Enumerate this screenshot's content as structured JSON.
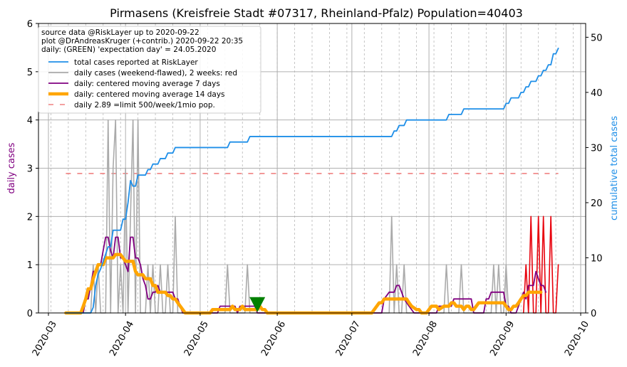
{
  "chart_data": {
    "type": "line",
    "title": "Pirmasens (Kreisfreie Stadt #07317, Rheinland-Pfalz) Population=40403",
    "ylabel_left": "daily cases",
    "ylabel_right": "cumulative total cases",
    "ylim_left": [
      0,
      6
    ],
    "ylim_right": [
      0,
      52.5
    ],
    "yticks_left": [
      "0",
      "1",
      "2",
      "3",
      "4",
      "5",
      "6"
    ],
    "yticks_right": [
      "0",
      "10",
      "20",
      "30",
      "40",
      "50"
    ],
    "xlim": [
      "2020-02-26",
      "2020-10-03"
    ],
    "xticks": [
      "2020-03",
      "2020-04",
      "2020-05",
      "2020-06",
      "2020-07",
      "2020-08",
      "2020-09",
      "2020-10"
    ],
    "grid": true,
    "legend_position": "top-left",
    "legend_header": [
      "source data @RiskLayer up to 2020-09-22",
      "plot @DrAndreasKruger (+contrib.) 2020-09-22 20:35",
      "daily: (GREEN) 'expectation day' = 24.05.2020"
    ],
    "legend_entries": [
      {
        "label": "total cases reported at RiskLayer",
        "color": "#1f8fe8"
      },
      {
        "label": "daily cases (weekend-flawed), 2 weeks: red",
        "color": "#aaaaaa"
      },
      {
        "label": "daily: centered moving average 7 days",
        "color": "#800080"
      },
      {
        "label": "daily: centered moving average 14 days",
        "color": "#ffa500"
      },
      {
        "label": "daily 2.89 =limit 500/week/1mio pop.",
        "color": "#f08080"
      }
    ],
    "limit_line": {
      "value": 2.89,
      "start": "2020-03-08",
      "end": "2020-09-22"
    },
    "expectation_day": "2020-05-24",
    "series_total": [
      [
        "2020-03-08",
        0
      ],
      [
        "2020-03-18",
        0
      ],
      [
        "2020-03-19",
        1
      ],
      [
        "2020-03-20",
        5
      ],
      [
        "2020-03-21",
        7
      ],
      [
        "2020-03-22",
        8
      ],
      [
        "2020-03-25",
        12
      ],
      [
        "2020-03-26",
        12
      ],
      [
        "2020-03-27",
        15
      ],
      [
        "2020-03-30",
        15
      ],
      [
        "2020-03-31",
        17
      ],
      [
        "2020-04-01",
        17
      ],
      [
        "2020-04-02",
        20
      ],
      [
        "2020-04-03",
        24
      ],
      [
        "2020-04-04",
        23
      ],
      [
        "2020-04-05",
        23
      ],
      [
        "2020-04-06",
        25
      ],
      [
        "2020-04-09",
        25
      ],
      [
        "2020-04-10",
        26
      ],
      [
        "2020-04-11",
        26
      ],
      [
        "2020-04-12",
        27
      ],
      [
        "2020-04-14",
        27
      ],
      [
        "2020-04-15",
        28
      ],
      [
        "2020-04-17",
        28
      ],
      [
        "2020-04-18",
        29
      ],
      [
        "2020-04-20",
        29
      ],
      [
        "2020-04-21",
        30
      ],
      [
        "2020-05-12",
        30
      ],
      [
        "2020-05-13",
        31
      ],
      [
        "2020-05-20",
        31
      ],
      [
        "2020-05-21",
        32
      ],
      [
        "2020-07-17",
        32
      ],
      [
        "2020-07-18",
        33
      ],
      [
        "2020-07-19",
        33
      ],
      [
        "2020-07-20",
        34
      ],
      [
        "2020-07-22",
        34
      ],
      [
        "2020-07-23",
        35
      ],
      [
        "2020-08-08",
        35
      ],
      [
        "2020-08-09",
        36
      ],
      [
        "2020-08-14",
        36
      ],
      [
        "2020-08-15",
        37
      ],
      [
        "2020-08-31",
        37
      ],
      [
        "2020-09-01",
        38
      ],
      [
        "2020-09-02",
        38
      ],
      [
        "2020-09-03",
        39
      ],
      [
        "2020-09-06",
        39
      ],
      [
        "2020-09-07",
        40
      ],
      [
        "2020-09-08",
        40
      ],
      [
        "2020-09-09",
        41
      ],
      [
        "2020-09-10",
        41
      ],
      [
        "2020-09-11",
        42
      ],
      [
        "2020-09-13",
        42
      ],
      [
        "2020-09-14",
        43
      ],
      [
        "2020-09-15",
        43
      ],
      [
        "2020-09-16",
        44
      ],
      [
        "2020-09-17",
        44
      ],
      [
        "2020-09-18",
        45
      ],
      [
        "2020-09-19",
        45
      ],
      [
        "2020-09-20",
        47
      ],
      [
        "2020-09-21",
        47
      ],
      [
        "2020-09-22",
        48
      ]
    ],
    "series_daily": [
      [
        "2020-03-08",
        0
      ],
      [
        "2020-03-18",
        0
      ],
      [
        "2020-03-19",
        1
      ],
      [
        "2020-03-20",
        0
      ],
      [
        "2020-03-21",
        1
      ],
      [
        "2020-03-22",
        0
      ],
      [
        "2020-03-24",
        0
      ],
      [
        "2020-03-25",
        4
      ],
      [
        "2020-03-26",
        0
      ],
      [
        "2020-03-27",
        3
      ],
      [
        "2020-03-28",
        4
      ],
      [
        "2020-03-29",
        0
      ],
      [
        "2020-03-30",
        1
      ],
      [
        "2020-03-31",
        0
      ],
      [
        "2020-04-01",
        3
      ],
      [
        "2020-04-02",
        0
      ],
      [
        "2020-04-03",
        2
      ],
      [
        "2020-04-04",
        4
      ],
      [
        "2020-04-05",
        0
      ],
      [
        "2020-04-06",
        4
      ],
      [
        "2020-04-07",
        0
      ],
      [
        "2020-04-08",
        0
      ],
      [
        "2020-04-09",
        0
      ],
      [
        "2020-04-10",
        1
      ],
      [
        "2020-04-11",
        0
      ],
      [
        "2020-04-12",
        1
      ],
      [
        "2020-04-13",
        0
      ],
      [
        "2020-04-14",
        0
      ],
      [
        "2020-04-15",
        1
      ],
      [
        "2020-04-16",
        0
      ],
      [
        "2020-04-17",
        0
      ],
      [
        "2020-04-18",
        1
      ],
      [
        "2020-04-19",
        0
      ],
      [
        "2020-04-20",
        0
      ],
      [
        "2020-04-21",
        2
      ],
      [
        "2020-04-22",
        0
      ],
      [
        "2020-05-11",
        0
      ],
      [
        "2020-05-12",
        1
      ],
      [
        "2020-05-13",
        0
      ],
      [
        "2020-05-19",
        0
      ],
      [
        "2020-05-20",
        1
      ],
      [
        "2020-05-21",
        0
      ],
      [
        "2020-07-16",
        0
      ],
      [
        "2020-07-17",
        2
      ],
      [
        "2020-07-18",
        0
      ],
      [
        "2020-07-19",
        1
      ],
      [
        "2020-07-20",
        0
      ],
      [
        "2020-07-21",
        0
      ],
      [
        "2020-07-22",
        1
      ],
      [
        "2020-07-23",
        0
      ],
      [
        "2020-08-07",
        0
      ],
      [
        "2020-08-08",
        1
      ],
      [
        "2020-08-09",
        0
      ],
      [
        "2020-08-13",
        0
      ],
      [
        "2020-08-14",
        1
      ],
      [
        "2020-08-15",
        0
      ],
      [
        "2020-08-26",
        0
      ],
      [
        "2020-08-27",
        1
      ],
      [
        "2020-08-28",
        0
      ],
      [
        "2020-08-29",
        1
      ],
      [
        "2020-08-30",
        0
      ],
      [
        "2020-08-31",
        0
      ],
      [
        "2020-09-01",
        1
      ],
      [
        "2020-09-02",
        0
      ],
      [
        "2020-09-04",
        0
      ]
    ],
    "series_daily_recent": [
      [
        "2020-09-08",
        0
      ],
      [
        "2020-09-09",
        1
      ],
      [
        "2020-09-10",
        0
      ],
      [
        "2020-09-11",
        2
      ],
      [
        "2020-09-12",
        0
      ],
      [
        "2020-09-13",
        0
      ],
      [
        "2020-09-14",
        2
      ],
      [
        "2020-09-15",
        0
      ],
      [
        "2020-09-16",
        2
      ],
      [
        "2020-09-17",
        0
      ],
      [
        "2020-09-18",
        0
      ],
      [
        "2020-09-19",
        2
      ],
      [
        "2020-09-20",
        0
      ],
      [
        "2020-09-21",
        0
      ],
      [
        "2020-09-22",
        1
      ]
    ],
    "series_ma7": [
      [
        "2020-03-08",
        0
      ],
      [
        "2020-03-15",
        0
      ],
      [
        "2020-03-16",
        0.29
      ],
      [
        "2020-03-17",
        0.29
      ],
      [
        "2020-03-18",
        0.57
      ],
      [
        "2020-03-19",
        0.86
      ],
      [
        "2020-03-20",
        0.86
      ],
      [
        "2020-03-21",
        1.0
      ],
      [
        "2020-03-22",
        1.0
      ],
      [
        "2020-03-23",
        1.29
      ],
      [
        "2020-03-24",
        1.57
      ],
      [
        "2020-03-25",
        1.57
      ],
      [
        "2020-03-26",
        1.29
      ],
      [
        "2020-03-27",
        1.14
      ],
      [
        "2020-03-28",
        1.57
      ],
      [
        "2020-03-29",
        1.57
      ],
      [
        "2020-03-30",
        1.14
      ],
      [
        "2020-03-31",
        1.14
      ],
      [
        "2020-04-01",
        1.0
      ],
      [
        "2020-04-02",
        0.86
      ],
      [
        "2020-04-03",
        1.57
      ],
      [
        "2020-04-04",
        1.57
      ],
      [
        "2020-04-05",
        1.14
      ],
      [
        "2020-04-06",
        1.14
      ],
      [
        "2020-04-07",
        1.0
      ],
      [
        "2020-04-08",
        0.71
      ],
      [
        "2020-04-09",
        0.57
      ],
      [
        "2020-04-10",
        0.29
      ],
      [
        "2020-04-11",
        0.29
      ],
      [
        "2020-04-12",
        0.43
      ],
      [
        "2020-04-13",
        0.43
      ],
      [
        "2020-04-14",
        0.57
      ],
      [
        "2020-04-15",
        0.43
      ],
      [
        "2020-04-16",
        0.43
      ],
      [
        "2020-04-17",
        0.43
      ],
      [
        "2020-04-18",
        0.43
      ],
      [
        "2020-04-19",
        0.43
      ],
      [
        "2020-04-20",
        0.43
      ],
      [
        "2020-04-21",
        0.29
      ],
      [
        "2020-04-22",
        0.29
      ],
      [
        "2020-04-23",
        0.14
      ],
      [
        "2020-04-24",
        0
      ],
      [
        "2020-05-08",
        0
      ],
      [
        "2020-05-09",
        0.14
      ],
      [
        "2020-05-15",
        0.14
      ],
      [
        "2020-05-16",
        0
      ],
      [
        "2020-05-17",
        0.14
      ],
      [
        "2020-05-23",
        0.14
      ],
      [
        "2020-05-24",
        0
      ],
      [
        "2020-07-13",
        0
      ],
      [
        "2020-07-14",
        0.29
      ],
      [
        "2020-07-16",
        0.43
      ],
      [
        "2020-07-18",
        0.43
      ],
      [
        "2020-07-19",
        0.57
      ],
      [
        "2020-07-20",
        0.57
      ],
      [
        "2020-07-21",
        0.43
      ],
      [
        "2020-07-22",
        0.29
      ],
      [
        "2020-07-24",
        0.14
      ],
      [
        "2020-07-26",
        0
      ],
      [
        "2020-08-04",
        0
      ],
      [
        "2020-08-05",
        0.14
      ],
      [
        "2020-08-10",
        0.14
      ],
      [
        "2020-08-11",
        0.29
      ],
      [
        "2020-08-18",
        0.29
      ],
      [
        "2020-08-19",
        0
      ],
      [
        "2020-08-23",
        0
      ],
      [
        "2020-08-24",
        0.29
      ],
      [
        "2020-08-25",
        0.29
      ],
      [
        "2020-08-26",
        0.43
      ],
      [
        "2020-08-31",
        0.43
      ],
      [
        "2020-09-01",
        0.14
      ],
      [
        "2020-09-02",
        0.14
      ],
      [
        "2020-09-03",
        0
      ],
      [
        "2020-09-05",
        0
      ],
      [
        "2020-09-06",
        0.14
      ],
      [
        "2020-09-07",
        0.29
      ],
      [
        "2020-09-08",
        0.43
      ],
      [
        "2020-09-09",
        0.29
      ],
      [
        "2020-09-10",
        0.57
      ],
      [
        "2020-09-11",
        0.57
      ],
      [
        "2020-09-12",
        0.57
      ],
      [
        "2020-09-13",
        0.86
      ],
      [
        "2020-09-14",
        0.71
      ],
      [
        "2020-09-15",
        0.57
      ],
      [
        "2020-09-16",
        0.57
      ],
      [
        "2020-09-17",
        0.43
      ]
    ],
    "series_ma14": [
      [
        "2020-03-08",
        0
      ],
      [
        "2020-03-14",
        0
      ],
      [
        "2020-03-15",
        0.14
      ],
      [
        "2020-03-16",
        0.29
      ],
      [
        "2020-03-17",
        0.5
      ],
      [
        "2020-03-18",
        0.5
      ],
      [
        "2020-03-19",
        0.71
      ],
      [
        "2020-03-20",
        0.86
      ],
      [
        "2020-03-21",
        1.0
      ],
      [
        "2020-03-22",
        1.0
      ],
      [
        "2020-03-23",
        1.0
      ],
      [
        "2020-03-24",
        1.14
      ],
      [
        "2020-03-25",
        1.14
      ],
      [
        "2020-03-26",
        1.14
      ],
      [
        "2020-03-27",
        1.14
      ],
      [
        "2020-03-28",
        1.21
      ],
      [
        "2020-03-29",
        1.21
      ],
      [
        "2020-03-30",
        1.21
      ],
      [
        "2020-03-31",
        1.14
      ],
      [
        "2020-04-01",
        1.07
      ],
      [
        "2020-04-02",
        1.07
      ],
      [
        "2020-04-03",
        1.07
      ],
      [
        "2020-04-04",
        1.07
      ],
      [
        "2020-04-05",
        0.86
      ],
      [
        "2020-04-06",
        0.79
      ],
      [
        "2020-04-07",
        0.79
      ],
      [
        "2020-04-08",
        0.79
      ],
      [
        "2020-04-09",
        0.71
      ],
      [
        "2020-04-10",
        0.71
      ],
      [
        "2020-04-11",
        0.71
      ],
      [
        "2020-04-12",
        0.57
      ],
      [
        "2020-04-13",
        0.57
      ],
      [
        "2020-04-14",
        0.43
      ],
      [
        "2020-04-15",
        0.43
      ],
      [
        "2020-04-16",
        0.43
      ],
      [
        "2020-04-17",
        0.43
      ],
      [
        "2020-04-18",
        0.36
      ],
      [
        "2020-04-19",
        0.36
      ],
      [
        "2020-04-20",
        0.29
      ],
      [
        "2020-04-21",
        0.29
      ],
      [
        "2020-04-22",
        0.21
      ],
      [
        "2020-04-23",
        0.14
      ],
      [
        "2020-04-24",
        0.07
      ],
      [
        "2020-04-25",
        0
      ],
      [
        "2020-05-05",
        0
      ],
      [
        "2020-05-06",
        0.07
      ],
      [
        "2020-05-10",
        0.07
      ],
      [
        "2020-05-11",
        0.07
      ],
      [
        "2020-05-12",
        0.07
      ],
      [
        "2020-05-13",
        0.07
      ],
      [
        "2020-05-14",
        0.14
      ],
      [
        "2020-05-15",
        0.07
      ],
      [
        "2020-05-17",
        0.07
      ],
      [
        "2020-05-18",
        0.14
      ],
      [
        "2020-05-19",
        0.07
      ],
      [
        "2020-05-23",
        0.07
      ],
      [
        "2020-05-24",
        0.07
      ],
      [
        "2020-05-25",
        0.14
      ],
      [
        "2020-05-26",
        0.07
      ],
      [
        "2020-05-27",
        0.07
      ],
      [
        "2020-05-28",
        0
      ],
      [
        "2020-07-09",
        0
      ],
      [
        "2020-07-10",
        0.07
      ],
      [
        "2020-07-11",
        0.14
      ],
      [
        "2020-07-12",
        0.21
      ],
      [
        "2020-07-13",
        0.21
      ],
      [
        "2020-07-14",
        0.29
      ],
      [
        "2020-07-16",
        0.29
      ],
      [
        "2020-07-17",
        0.29
      ],
      [
        "2020-07-19",
        0.29
      ],
      [
        "2020-07-20",
        0.29
      ],
      [
        "2020-07-21",
        0.29
      ],
      [
        "2020-07-23",
        0.29
      ],
      [
        "2020-07-24",
        0.21
      ],
      [
        "2020-07-25",
        0.14
      ],
      [
        "2020-07-27",
        0.07
      ],
      [
        "2020-07-28",
        0.07
      ],
      [
        "2020-07-29",
        0
      ],
      [
        "2020-07-31",
        0
      ],
      [
        "2020-08-01",
        0.07
      ],
      [
        "2020-08-02",
        0.14
      ],
      [
        "2020-08-04",
        0.14
      ],
      [
        "2020-08-05",
        0.07
      ],
      [
        "2020-08-07",
        0.14
      ],
      [
        "2020-08-09",
        0.14
      ],
      [
        "2020-08-10",
        0.21
      ],
      [
        "2020-08-11",
        0.21
      ],
      [
        "2020-08-12",
        0.14
      ],
      [
        "2020-08-14",
        0.14
      ],
      [
        "2020-08-15",
        0.07
      ],
      [
        "2020-08-16",
        0.14
      ],
      [
        "2020-08-17",
        0.14
      ],
      [
        "2020-08-18",
        0.07
      ],
      [
        "2020-08-19",
        0.07
      ],
      [
        "2020-08-20",
        0.14
      ],
      [
        "2020-08-21",
        0.21
      ],
      [
        "2020-08-22",
        0.21
      ],
      [
        "2020-08-23",
        0.21
      ],
      [
        "2020-08-24",
        0.21
      ],
      [
        "2020-08-25",
        0.21
      ],
      [
        "2020-08-26",
        0.21
      ],
      [
        "2020-08-27",
        0.21
      ],
      [
        "2020-08-29",
        0.21
      ],
      [
        "2020-08-30",
        0.21
      ],
      [
        "2020-08-31",
        0.21
      ],
      [
        "2020-09-01",
        0.14
      ],
      [
        "2020-09-02",
        0.07
      ],
      [
        "2020-09-03",
        0.07
      ],
      [
        "2020-09-04",
        0.14
      ],
      [
        "2020-09-05",
        0.14
      ],
      [
        "2020-09-06",
        0.21
      ],
      [
        "2020-09-07",
        0.29
      ],
      [
        "2020-09-08",
        0.36
      ],
      [
        "2020-09-09",
        0.36
      ],
      [
        "2020-09-10",
        0.43
      ],
      [
        "2020-09-11",
        0.43
      ],
      [
        "2020-09-12",
        0.43
      ],
      [
        "2020-09-13",
        0.43
      ],
      [
        "2020-09-14",
        0.43
      ],
      [
        "2020-09-15",
        0.43
      ]
    ],
    "colors": {
      "total": "#1f8fe8",
      "daily": "#aaaaaa",
      "daily_recent": "#e8000b",
      "ma7": "#800080",
      "ma14": "#ffa500",
      "limit": "#f08080",
      "expectation_marker": "#008000",
      "grid_major": "#b0b0b0",
      "grid_minor": "#b8b8b8",
      "ylabel_left_color": "#800080",
      "ylabel_right_color": "#1f8fe8"
    }
  }
}
